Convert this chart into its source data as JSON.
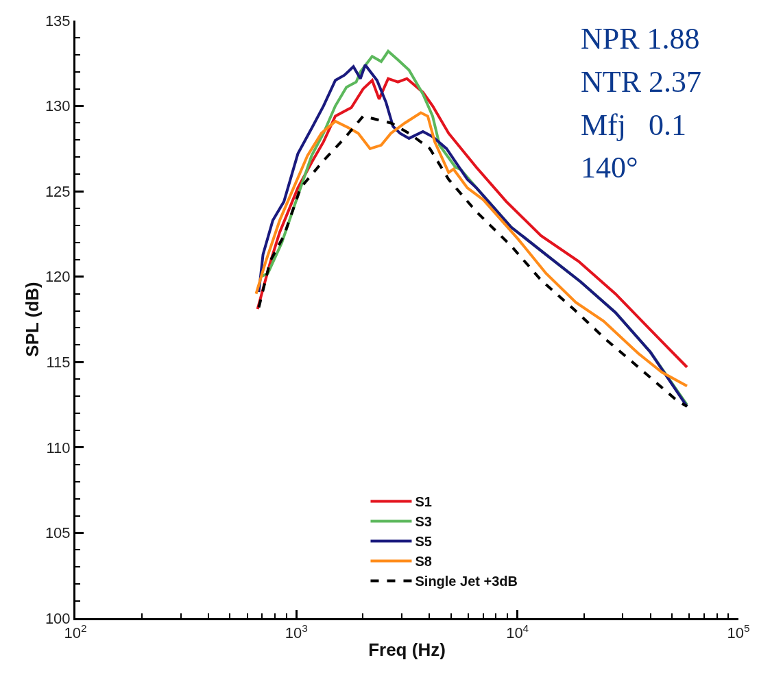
{
  "chart_data": {
    "type": "line",
    "xlabel": "Freq (Hz)",
    "ylabel": "SPL (dB)",
    "log": "x",
    "xlim": [
      100,
      100000
    ],
    "xticks": [
      {
        "value": 100,
        "label": "10$^{2}$"
      },
      {
        "value": 1000,
        "label": "10$^{3}$"
      },
      {
        "value": 10000,
        "label": "10$^{4}$"
      },
      {
        "value": 100000,
        "label": "10$^{5}$"
      }
    ],
    "ylim": [
      100,
      135
    ],
    "yticks": [
      100,
      105,
      110,
      115,
      120,
      125,
      130,
      135
    ],
    "legend": "bottom",
    "marker": "none",
    "annotations": [
      "NPR 1.88",
      "NTR 2.37",
      "Mfj   0.1",
      "140°"
    ],
    "series": [
      {
        "name": "S1",
        "color": "#e3141e",
        "line_style": "solid",
        "x": [
          667,
          760,
          840,
          1015,
          1173,
          1326,
          1500,
          1772,
          2004,
          2202,
          2367,
          2601,
          2879,
          3162,
          3736,
          4134,
          4883,
          6525,
          8906,
          12790,
          18910,
          27760,
          39870,
          58520
        ],
        "values": [
          118.1,
          120.8,
          122.6,
          125.2,
          126.7,
          127.9,
          129.4,
          129.9,
          131.0,
          131.5,
          130.4,
          131.6,
          131.4,
          131.6,
          130.8,
          130.0,
          128.4,
          126.4,
          124.4,
          122.4,
          120.9,
          119.0,
          116.9,
          114.7
        ]
      },
      {
        "name": "S3",
        "color": "#5cb85c",
        "line_style": "solid",
        "x": [
          691,
          743,
          859,
          1044,
          1173,
          1326,
          1500,
          1684,
          1864,
          1947,
          2202,
          2419,
          2601,
          2879,
          3232,
          3736,
          4134,
          4444,
          5250,
          5522,
          6525,
          9370,
          13454,
          19330,
          27760,
          39870,
          58520
        ],
        "values": [
          120.0,
          120.2,
          122.0,
          125.2,
          127.1,
          128.4,
          130.0,
          131.1,
          131.4,
          132.0,
          132.9,
          132.6,
          133.2,
          132.7,
          132.1,
          130.7,
          129.4,
          127.7,
          126.4,
          126.3,
          125.2,
          122.9,
          121.3,
          119.7,
          117.9,
          115.6,
          112.5
        ]
      },
      {
        "name": "S5",
        "color": "#1a1a7e",
        "line_style": "solid",
        "x": [
          676,
          706,
          782,
          878,
          1015,
          1173,
          1326,
          1500,
          1648,
          1811,
          1947,
          2048,
          2316,
          2545,
          2736,
          2942,
          3232,
          3736,
          4134,
          4778,
          5935,
          6525,
          9370,
          13454,
          19330,
          27760,
          39870,
          58520
        ],
        "values": [
          119.1,
          121.3,
          123.3,
          124.4,
          127.2,
          128.7,
          130.0,
          131.5,
          131.8,
          132.3,
          131.6,
          132.4,
          131.5,
          130.2,
          128.8,
          128.4,
          128.1,
          128.5,
          128.2,
          127.5,
          125.7,
          125.2,
          122.9,
          121.3,
          119.7,
          117.9,
          115.6,
          112.4
        ]
      },
      {
        "name": "S8",
        "color": "#ff8c1a",
        "line_style": "solid",
        "x": [
          657,
          727,
          840,
          971,
          1123,
          1298,
          1500,
          1734,
          1905,
          2154,
          2419,
          2677,
          3095,
          3656,
          3929,
          4225,
          4883,
          5137,
          5935,
          7015,
          10072,
          13454,
          18370,
          24540,
          35260,
          45100,
          58520
        ],
        "values": [
          119.0,
          120.9,
          123.3,
          125.2,
          127.1,
          128.4,
          129.1,
          128.7,
          128.4,
          127.5,
          127.7,
          128.4,
          129.0,
          129.6,
          129.4,
          127.9,
          126.1,
          126.3,
          125.2,
          124.5,
          122.2,
          120.2,
          118.5,
          117.4,
          115.5,
          114.4,
          113.6
        ]
      },
      {
        "name": "Single Jet +3dB",
        "color": "#000000",
        "line_style": "dashed",
        "x": [
          676,
          760,
          878,
          1044,
          1326,
          1648,
          2004,
          2316,
          2677,
          3232,
          4017,
          4883,
          6525,
          9370,
          12790,
          17970,
          25260,
          35260,
          52120,
          58520
        ],
        "values": [
          118.2,
          120.9,
          122.4,
          125.2,
          126.8,
          128.1,
          129.4,
          129.2,
          129.0,
          128.4,
          127.5,
          125.7,
          123.8,
          121.8,
          119.8,
          118.1,
          116.3,
          114.7,
          112.8,
          112.4
        ]
      }
    ]
  }
}
